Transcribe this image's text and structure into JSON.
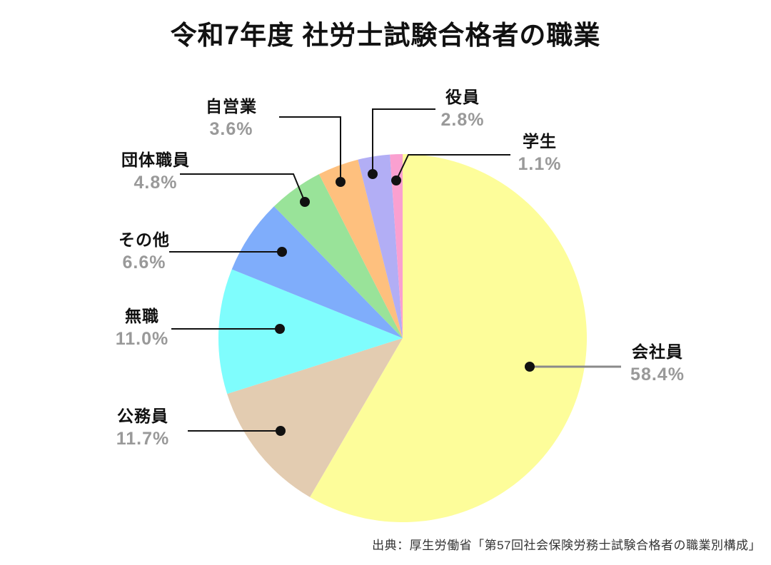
{
  "title": "令和7年度 社労士試験合格者の職業",
  "source": "出典：厚生労働省「第57回社会保険労務士試験合格者の職業別構成」",
  "colors": {
    "background": "#ffffff",
    "label_text": "#111111",
    "pct_text": "#999999",
    "leader_default": "#111111",
    "leader_kaishain": "#8a8a8a",
    "dot": "#111111"
  },
  "chart_data": {
    "type": "pie",
    "title": "令和7年度 社労士試験合格者の職業",
    "start": "top",
    "direction": "clockwise",
    "unit": "%",
    "legend_position": "callout-labels",
    "segments": [
      {
        "id": "company-employee",
        "label": "会社員",
        "value": 58.4,
        "display": "58.4%",
        "color": "#fdfd9a"
      },
      {
        "id": "civil-servant",
        "label": "公務員",
        "value": 11.7,
        "display": "11.7%",
        "color": "#e3ccb1"
      },
      {
        "id": "unemployed",
        "label": "無職",
        "value": 11.0,
        "display": "11.0%",
        "color": "#7ffdfd"
      },
      {
        "id": "other",
        "label": "その他",
        "value": 6.6,
        "display": "6.6%",
        "color": "#7fadfb"
      },
      {
        "id": "organization-staff",
        "label": "団体職員",
        "value": 4.8,
        "display": "4.8%",
        "color": "#99e399"
      },
      {
        "id": "self-employed",
        "label": "自営業",
        "value": 3.6,
        "display": "3.6%",
        "color": "#fec07e"
      },
      {
        "id": "executive",
        "label": "役員",
        "value": 2.8,
        "display": "2.8%",
        "color": "#b2aef5"
      },
      {
        "id": "student",
        "label": "学生",
        "value": 1.1,
        "display": "1.1%",
        "color": "#faa0d0"
      }
    ]
  }
}
